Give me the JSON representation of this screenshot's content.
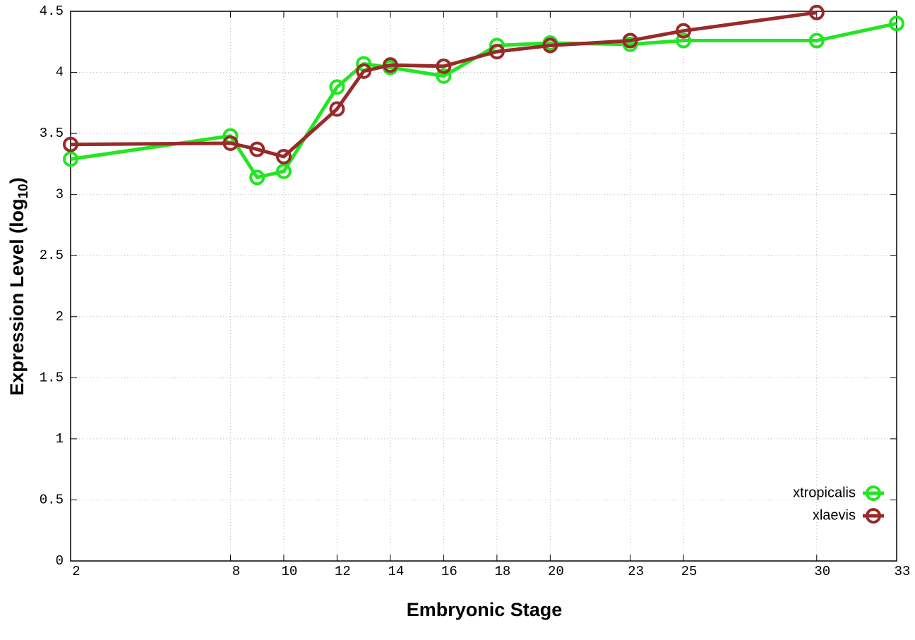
{
  "chart_data": {
    "type": "line",
    "x_label": "Embryonic Stage",
    "y_label_parts": [
      "Expression Level (log",
      "10",
      ")"
    ],
    "x": [
      2,
      8,
      9,
      10,
      12,
      13,
      14,
      16,
      18,
      20,
      23,
      25,
      30,
      33
    ],
    "series": [
      {
        "name": "xtropicalis",
        "color": "#22e622",
        "values": [
          3.29,
          3.48,
          3.14,
          3.19,
          3.88,
          4.07,
          4.04,
          3.97,
          4.22,
          4.24,
          4.23,
          4.26,
          4.26,
          4.4
        ]
      },
      {
        "name": "xlaevis",
        "color": "#992a2a",
        "values": [
          3.41,
          3.42,
          3.37,
          3.31,
          3.7,
          4.01,
          4.06,
          4.05,
          4.17,
          4.22,
          4.26,
          4.34,
          4.49,
          null
        ]
      }
    ],
    "xlim": [
      2,
      33
    ],
    "xticks": [
      2,
      8,
      10,
      12,
      14,
      16,
      18,
      20,
      23,
      25,
      30,
      33
    ],
    "ylim": [
      0,
      4.5
    ],
    "yticks": [
      0,
      0.5,
      1,
      1.5,
      2,
      2.5,
      3,
      3.5,
      4,
      4.5
    ],
    "grid": true,
    "legend": "bottom-right"
  }
}
